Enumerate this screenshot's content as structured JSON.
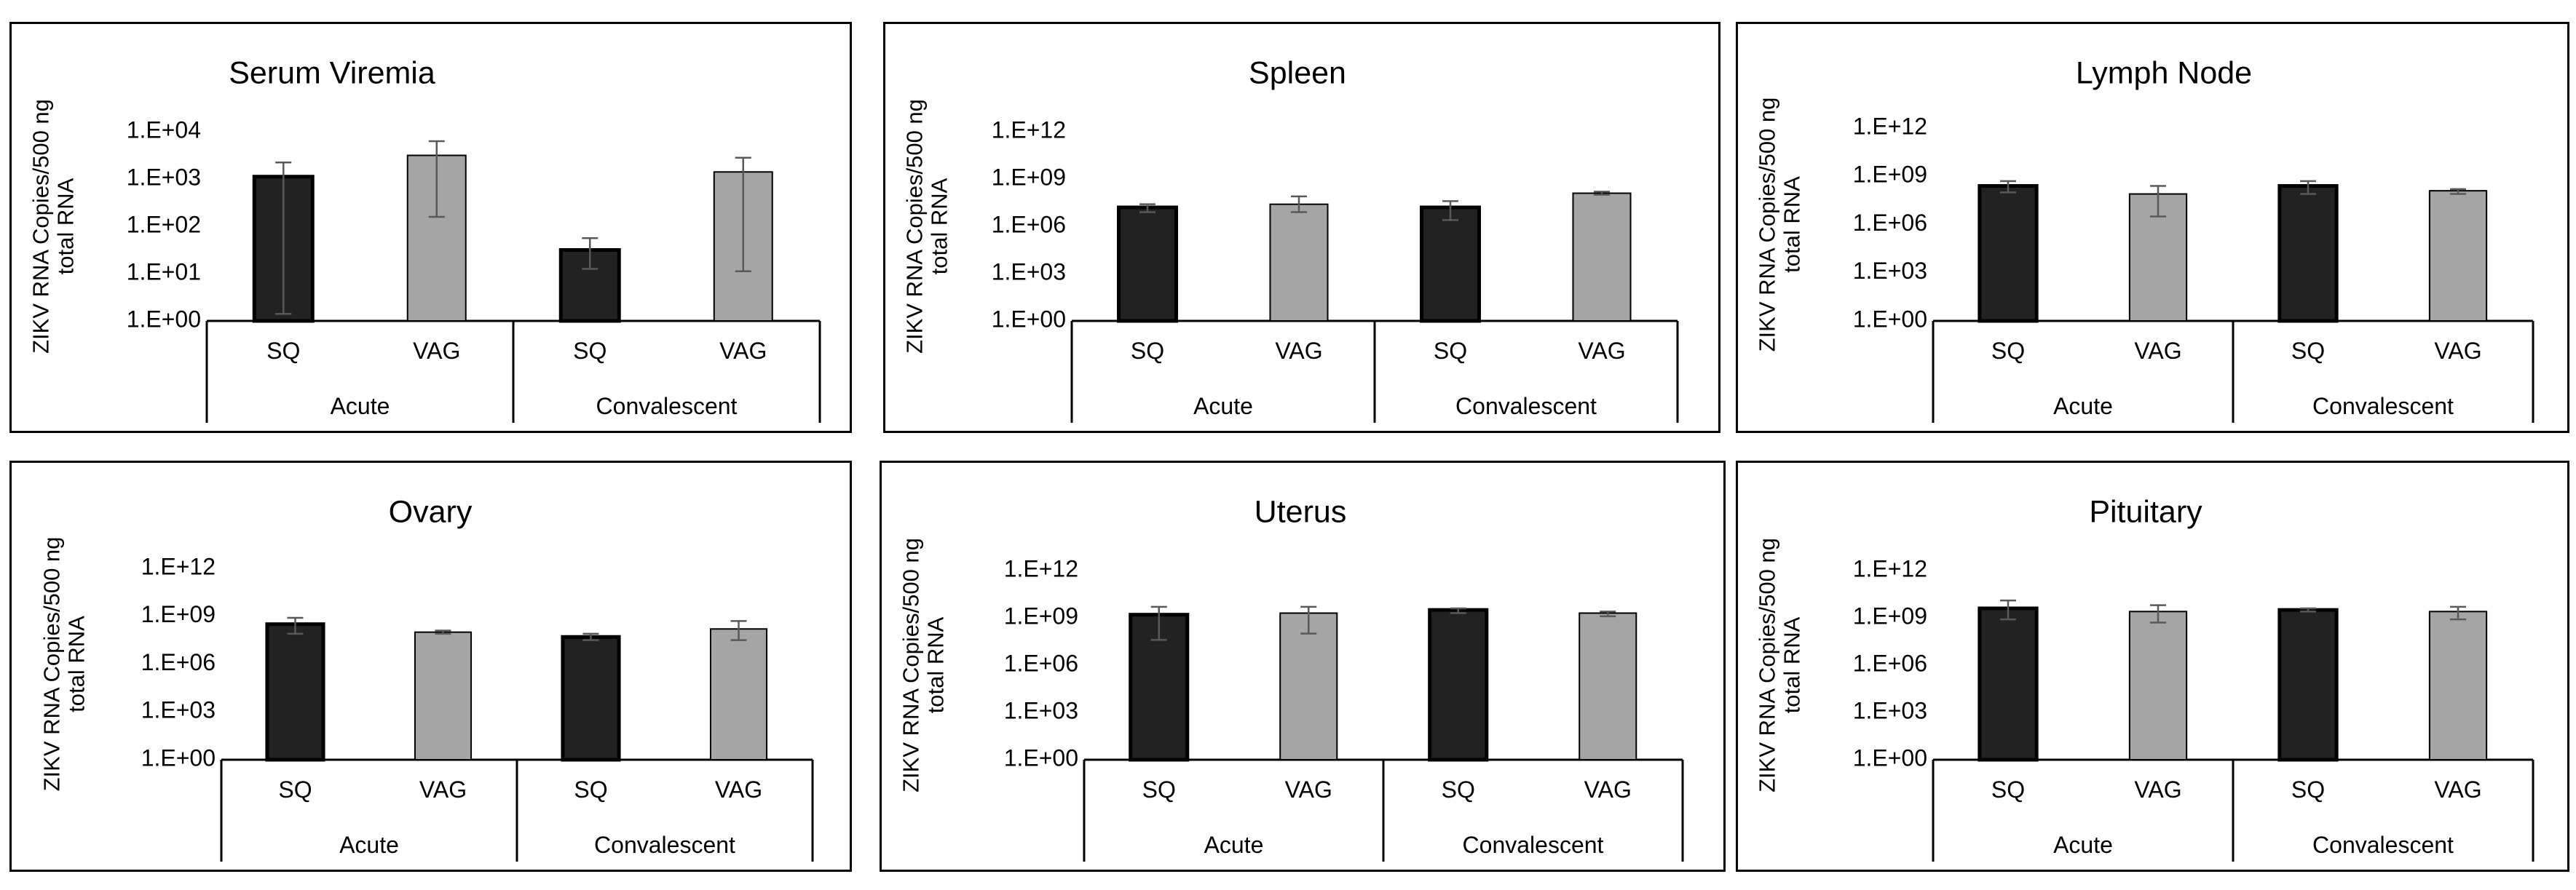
{
  "colors": {
    "sq_bar": "#222222",
    "vag_bar": "#a5a5a5",
    "error_bar": "#595959",
    "axis": "#000000"
  },
  "chart_data": [
    {
      "type": "bar",
      "title": "Serum Viremia",
      "ylabel": [
        "ZIKV RNA Copies/500 ng",
        "total RNA"
      ],
      "yticks": [
        "1.E+04",
        "1.E+03",
        "1.E+02",
        "1.E+01",
        "1.E+00"
      ],
      "ylim_log10": [
        0,
        4
      ],
      "groups": [
        "Acute",
        "Convalescent"
      ],
      "categories": [
        "SQ",
        "VAG",
        "SQ",
        "VAG"
      ],
      "values_log10": [
        3.05,
        3.5,
        1.5,
        3.15
      ],
      "err_low_log10": [
        0.15,
        2.2,
        1.1,
        1.05
      ],
      "err_high_log10": [
        3.35,
        3.8,
        1.75,
        3.45
      ]
    },
    {
      "type": "bar",
      "title": "Spleen",
      "ylabel": [
        "ZIKV RNA Copies/500 ng",
        "total RNA"
      ],
      "yticks": [
        "1.E+12",
        "1.E+09",
        "1.E+06",
        "1.E+03",
        "1.E+00"
      ],
      "ylim_log10": [
        0,
        12
      ],
      "groups": [
        "Acute",
        "Convalescent"
      ],
      "categories": [
        "SQ",
        "VAG",
        "SQ",
        "VAG"
      ],
      "values_log10": [
        7.2,
        7.4,
        7.2,
        8.1
      ],
      "err_low_log10": [
        6.9,
        6.9,
        6.4,
        8.0
      ],
      "err_high_log10": [
        7.4,
        7.9,
        7.6,
        8.2
      ]
    },
    {
      "type": "bar",
      "title": "Lymph Node",
      "ylabel": [
        "ZIKV RNA Copies/500 ng",
        "total RNA"
      ],
      "yticks": [
        "1.E+12",
        "1.E+09",
        "1.E+06",
        "1.E+03",
        "1.E+00"
      ],
      "ylim_log10": [
        0,
        12
      ],
      "groups": [
        "Acute",
        "Convalescent"
      ],
      "categories": [
        "SQ",
        "VAG",
        "SQ",
        "VAG"
      ],
      "values_log10": [
        8.4,
        7.9,
        8.4,
        8.1
      ],
      "err_low_log10": [
        8.0,
        6.5,
        7.9,
        7.9
      ],
      "err_high_log10": [
        8.7,
        8.4,
        8.7,
        8.2
      ]
    },
    {
      "type": "bar",
      "title": "Ovary",
      "ylabel": [
        "ZIKV RNA Copies/500 ng",
        "total RNA"
      ],
      "yticks": [
        "1.E+12",
        "1.E+09",
        "1.E+06",
        "1.E+03",
        "1.E+00"
      ],
      "ylim_log10": [
        0,
        12
      ],
      "groups": [
        "Acute",
        "Convalescent"
      ],
      "categories": [
        "SQ",
        "VAG",
        "SQ",
        "VAG"
      ],
      "values_log10": [
        8.5,
        8.0,
        7.7,
        8.2
      ],
      "err_low_log10": [
        7.9,
        7.9,
        7.5,
        7.5
      ],
      "err_high_log10": [
        8.9,
        8.1,
        7.9,
        8.7
      ]
    },
    {
      "type": "bar",
      "title": "Uterus",
      "ylabel": [
        "ZIKV RNA Copies/500 ng",
        "total RNA"
      ],
      "yticks": [
        "1.E+12",
        "1.E+09",
        "1.E+06",
        "1.E+03",
        "1.E+00"
      ],
      "ylim_log10": [
        0,
        12
      ],
      "groups": [
        "Acute",
        "Convalescent"
      ],
      "categories": [
        "SQ",
        "VAG",
        "SQ",
        "VAG"
      ],
      "values_log10": [
        9.2,
        9.3,
        9.5,
        9.3
      ],
      "err_low_log10": [
        7.6,
        8.0,
        9.3,
        9.1
      ],
      "err_high_log10": [
        9.7,
        9.7,
        9.6,
        9.4
      ]
    },
    {
      "type": "bar",
      "title": "Pituitary",
      "ylabel": [
        "ZIKV RNA Copies/500 ng",
        "total RNA"
      ],
      "yticks": [
        "1.E+12",
        "1.E+09",
        "1.E+06",
        "1.E+03",
        "1.E+00"
      ],
      "ylim_log10": [
        0,
        12
      ],
      "groups": [
        "Acute",
        "Convalescent"
      ],
      "categories": [
        "SQ",
        "VAG",
        "SQ",
        "VAG"
      ],
      "values_log10": [
        9.6,
        9.4,
        9.5,
        9.4
      ],
      "err_low_log10": [
        8.9,
        8.7,
        9.4,
        8.9
      ],
      "err_high_log10": [
        10.1,
        9.8,
        9.6,
        9.7
      ]
    }
  ]
}
